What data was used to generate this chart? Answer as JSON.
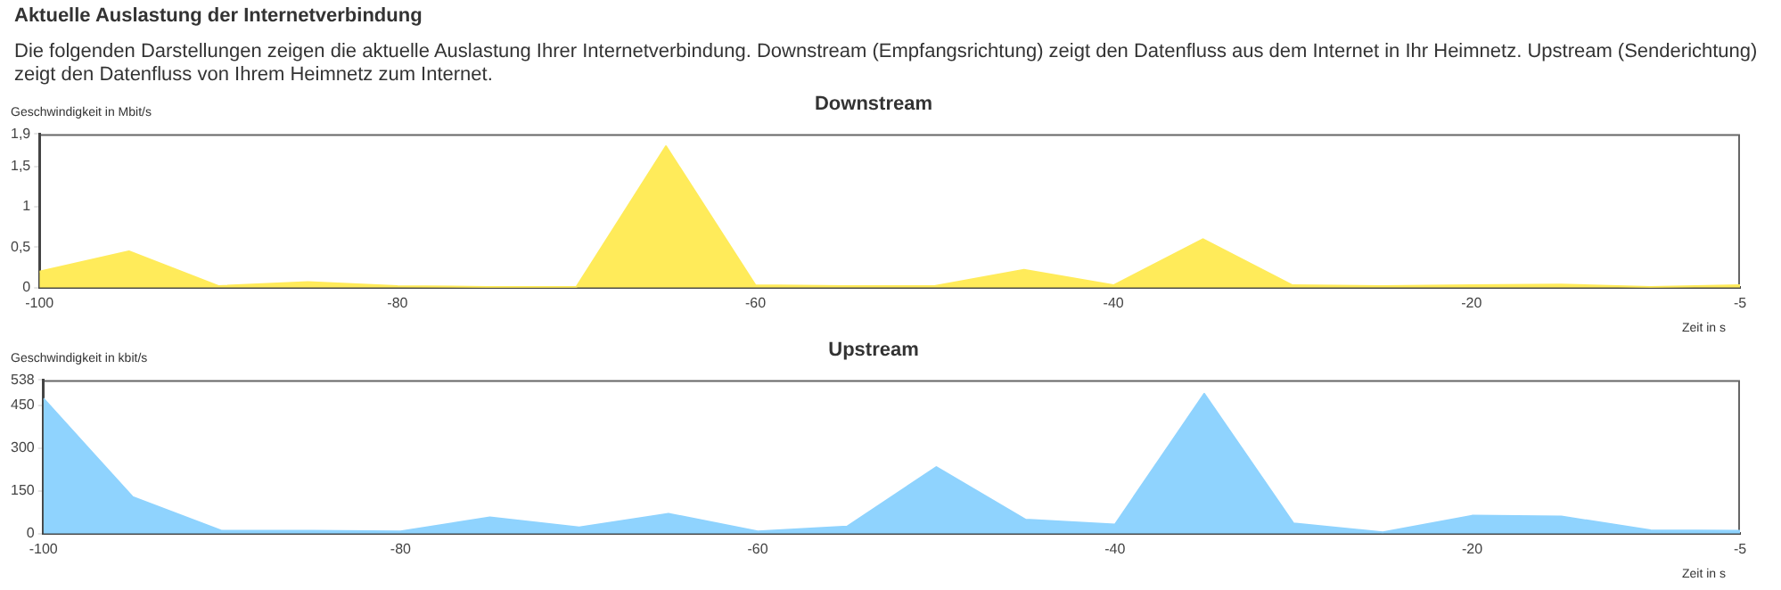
{
  "chart_data": [
    {
      "type": "other",
      "title": "Aktuelle Auslastung der Internetverbindung",
      "annotations": [
        "Die folgenden Darstellungen zeigen die aktuelle Auslastung Ihrer Internetverbindung. Downstream (Empfangsrichtung) zeigt den Datenfluss aus dem Internet in Ihr Heimnetz. Upstream (Senderichtung) zeigt den Datenfluss von Ihrem Heimnetz zum Internet."
      ]
    },
    {
      "type": "area",
      "title": "Downstream",
      "ylabel": "Geschwindigkeit in Mbit/s",
      "xlabel": "Zeit in s",
      "x": [
        -100,
        -95,
        -90,
        -85,
        -80,
        -75,
        -70,
        -65,
        -60,
        -55,
        -50,
        -45,
        -40,
        -35,
        -30,
        -25,
        -20,
        -15,
        -10,
        -5
      ],
      "series": [
        {
          "color": "#ffeb5a",
          "values": [
            0.2,
            0.45,
            0.02,
            0.07,
            0.02,
            0.01,
            0.01,
            1.75,
            0.03,
            0.02,
            0.02,
            0.22,
            0.03,
            0.6,
            0.03,
            0.02,
            0.03,
            0.04,
            0.01,
            0.03
          ]
        }
      ],
      "xlim": [
        -100,
        -5
      ],
      "xticks": [
        -100,
        -80,
        -60,
        -40,
        -20,
        -5
      ],
      "ylim": [
        0,
        1.9
      ],
      "yticks": [
        0,
        {
          "value": 0.5,
          "label": "0,5"
        },
        1,
        {
          "value": 1.5,
          "label": "1,5"
        },
        {
          "value": 1.9,
          "label": "1,9"
        }
      ],
      "grid": false,
      "legend": false
    },
    {
      "type": "area",
      "title": "Upstream",
      "ylabel": "Geschwindigkeit in kbit/s",
      "xlabel": "Zeit in s",
      "x": [
        -100,
        -95,
        -90,
        -85,
        -80,
        -75,
        -70,
        -65,
        -60,
        -55,
        -50,
        -45,
        -40,
        -35,
        -30,
        -25,
        -20,
        -15,
        -10,
        -5
      ],
      "series": [
        {
          "color": "#8fd3fe",
          "values": [
            473,
            128,
            10,
            10,
            8,
            57,
            22,
            70,
            8,
            25,
            233,
            49,
            32,
            490,
            36,
            5,
            63,
            60,
            12,
            10
          ]
        }
      ],
      "xlim": [
        -100,
        -5
      ],
      "xticks": [
        -100,
        -80,
        -60,
        -40,
        -20,
        -5
      ],
      "ylim": [
        0,
        538
      ],
      "yticks": [
        0,
        150,
        300,
        450,
        538
      ],
      "grid": false,
      "legend": false
    }
  ]
}
